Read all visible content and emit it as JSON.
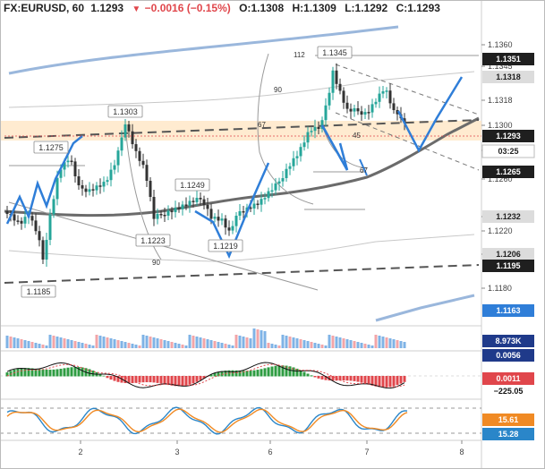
{
  "header": {
    "symbol": "FX:EURUSD, 60",
    "last": "1.1293",
    "change": "−0.0016 (−0.15%)",
    "open_label": "O:",
    "open": "1.1308",
    "high_label": "H:",
    "high": "1.1309",
    "low_label": "L:",
    "low": "1.1292",
    "close_label": "C:",
    "close": "1.1293",
    "down_arrow": "▼"
  },
  "price_scale": {
    "ticks": [
      "1.1360",
      "1.1345",
      "1.1318",
      "1.1300",
      "1.1279",
      "1.1260",
      "1.1232",
      "1.1220",
      "1.1206",
      "1.1180"
    ],
    "tags": [
      {
        "label": "1.1351",
        "style": "dark"
      },
      {
        "label": "1.1318",
        "style": "grey"
      },
      {
        "label": "1.1293",
        "style": "dark"
      },
      {
        "label": "03:25",
        "style": "white"
      },
      {
        "label": "1.1265",
        "style": "dark"
      },
      {
        "label": "1.1232",
        "style": "grey"
      },
      {
        "label": "1.1206",
        "style": "grey"
      },
      {
        "label": "1.1195",
        "style": "dark"
      },
      {
        "label": "1.1163",
        "style": "blue"
      }
    ]
  },
  "volume_scale": {
    "tag": "8.973K"
  },
  "macd_scale": {
    "tags": [
      "0.0056",
      "0.0011",
      "−225.05"
    ]
  },
  "stoch_scale": {
    "tags": [
      "15.61",
      "15.28"
    ]
  },
  "time_axis": {
    "labels": [
      "2",
      "3",
      "6",
      "7",
      "8"
    ]
  },
  "annotations": {
    "price_labels": [
      "1.1303",
      "1.1275",
      "1.1249",
      "1.1223",
      "1.1219",
      "1.1185",
      "1.1345"
    ],
    "fib_labels": [
      "112",
      "90",
      "67",
      "45",
      "67",
      "90"
    ]
  },
  "colors": {
    "up_candle": "#26a69a",
    "down_candle": "#333333",
    "price_line": "#e0464b",
    "fib_line": "#1e88e5",
    "band": "#ffe0b2",
    "volume_up": "#7fb3e6",
    "volume_down": "#f2a5a8",
    "macd_up": "#2e9c42",
    "macd_down": "#e0464b",
    "stoch_k": "#2a86c9",
    "stoch_d": "#f08a24"
  }
}
